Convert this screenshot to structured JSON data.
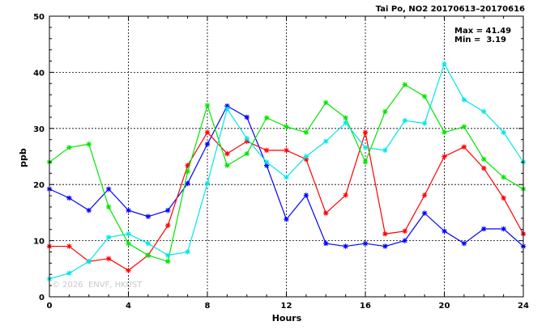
{
  "chart_data": {
    "type": "line",
    "title": "Tai Po, NO2 20170613–20170616",
    "xlabel": "Hours",
    "ylabel": "ppb",
    "xlim": [
      0,
      24
    ],
    "ylim": [
      0,
      50
    ],
    "xticks": [
      0,
      4,
      8,
      12,
      16,
      20,
      24
    ],
    "yticks": [
      0,
      10,
      20,
      30,
      40,
      50
    ],
    "grid": true,
    "stats": {
      "max_label": "Max = 41.49",
      "min_label": "Min =  3.19"
    },
    "watermark": "© 2026  ENVF, HKUST",
    "x": [
      0,
      1,
      2,
      3,
      4,
      5,
      6,
      7,
      8,
      9,
      10,
      11,
      12,
      13,
      14,
      15,
      16,
      17,
      18,
      19,
      20,
      21,
      22,
      23,
      24
    ],
    "series": [
      {
        "color": "#0000ff",
        "values": [
          19.2,
          17.6,
          15.4,
          19.2,
          15.4,
          14.3,
          15.4,
          20.2,
          27.2,
          34.0,
          32.0,
          23.4,
          13.8,
          18.1,
          9.5,
          9.0,
          9.5,
          9.0,
          10.0,
          14.9,
          11.7,
          9.5,
          12.1,
          12.1,
          9.0
        ]
      },
      {
        "color": "#ff0000",
        "values": [
          9.0,
          9.0,
          6.3,
          6.8,
          4.7,
          7.4,
          12.7,
          23.4,
          29.3,
          25.5,
          27.7,
          26.1,
          26.1,
          24.5,
          14.9,
          18.1,
          29.3,
          11.2,
          11.7,
          18.1,
          25.0,
          26.7,
          22.9,
          17.6,
          11.2
        ]
      },
      {
        "color": "#00e600",
        "values": [
          24.0,
          26.6,
          27.2,
          16.0,
          9.5,
          7.4,
          6.3,
          22.3,
          34.1,
          23.4,
          25.5,
          31.9,
          30.3,
          29.3,
          34.6,
          31.9,
          24.0,
          33.0,
          37.8,
          35.7,
          29.3,
          30.3,
          24.5,
          21.3,
          19.2
        ]
      },
      {
        "color": "#00e6e6",
        "values": [
          3.2,
          4.2,
          6.3,
          10.6,
          11.2,
          9.5,
          7.4,
          8.0,
          20.2,
          33.5,
          28.2,
          24.0,
          21.3,
          25.0,
          27.7,
          31.0,
          26.6,
          26.1,
          31.4,
          30.9,
          41.5,
          35.1,
          33.0,
          29.3,
          24.0
        ]
      }
    ]
  }
}
